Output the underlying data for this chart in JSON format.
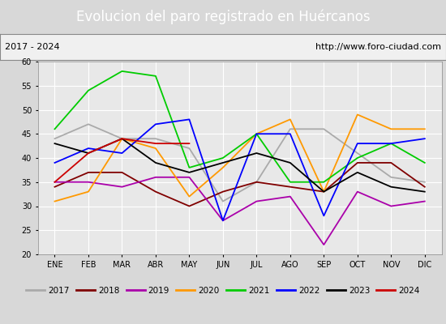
{
  "title": "Evolucion del paro registrado en Huércanos",
  "subtitle_left": "2017 - 2024",
  "subtitle_right": "http://www.foro-ciudad.com",
  "months": [
    "ENE",
    "FEB",
    "MAR",
    "ABR",
    "MAY",
    "JUN",
    "JUL",
    "AGO",
    "SEP",
    "OCT",
    "NOV",
    "DIC"
  ],
  "ylim": [
    20,
    60
  ],
  "yticks": [
    20,
    25,
    30,
    35,
    40,
    45,
    50,
    55,
    60
  ],
  "series": {
    "2017": {
      "color": "#aaaaaa",
      "data": [
        44,
        47,
        44,
        44,
        42,
        31,
        35,
        46,
        46,
        41,
        36,
        35
      ]
    },
    "2018": {
      "color": "#800000",
      "data": [
        34,
        37,
        37,
        33,
        30,
        33,
        35,
        34,
        33,
        39,
        39,
        34
      ]
    },
    "2019": {
      "color": "#aa00aa",
      "data": [
        35,
        35,
        34,
        36,
        36,
        27,
        31,
        32,
        22,
        33,
        30,
        31
      ]
    },
    "2020": {
      "color": "#ff9900",
      "data": [
        31,
        33,
        44,
        42,
        32,
        38,
        45,
        48,
        33,
        49,
        46,
        46
      ]
    },
    "2021": {
      "color": "#00cc00",
      "data": [
        46,
        54,
        58,
        57,
        38,
        40,
        45,
        35,
        35,
        40,
        43,
        39
      ]
    },
    "2022": {
      "color": "#0000ff",
      "data": [
        39,
        42,
        41,
        47,
        48,
        27,
        45,
        45,
        28,
        43,
        43,
        44
      ]
    },
    "2023": {
      "color": "#000000",
      "data": [
        43,
        41,
        44,
        39,
        37,
        39,
        41,
        39,
        33,
        37,
        34,
        33
      ]
    },
    "2024": {
      "color": "#cc0000",
      "data": [
        35,
        41,
        44,
        43,
        43,
        null,
        null,
        null,
        null,
        null,
        null,
        null
      ]
    }
  },
  "bg_color": "#d8d8d8",
  "plot_bg_color": "#e8e8e8",
  "title_bg_color": "#4472c4",
  "title_text_color": "#ffffff",
  "subtitle_bg_color": "#f0f0f0",
  "legend_bg_color": "#f8f8f8",
  "grid_color": "#ffffff",
  "title_fontsize": 12,
  "subtitle_fontsize": 8,
  "tick_fontsize": 7,
  "legend_fontsize": 7.5
}
